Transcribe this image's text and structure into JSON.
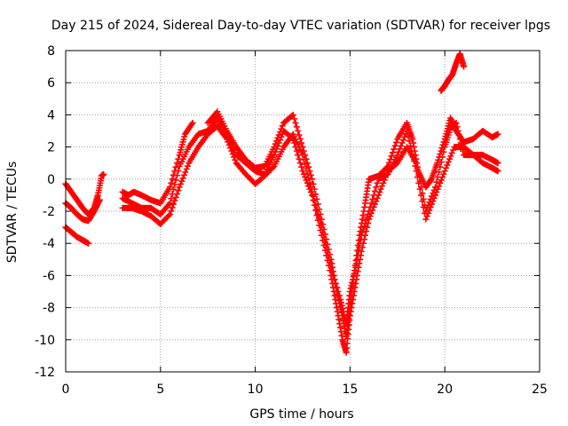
{
  "chart_data": {
    "type": "scatter",
    "title": "Day 215 of 2024, Sidereal Day-to-day VTEC variation (SDTVAR) for receiver lpgs",
    "xlabel": "GPS time / hours",
    "ylabel": "SDTVAR / TECUs",
    "xlim": [
      0,
      25
    ],
    "ylim": [
      -12,
      8
    ],
    "x_ticks": [
      0,
      5,
      10,
      15,
      20,
      25
    ],
    "y_ticks": [
      -12,
      -10,
      -8,
      -6,
      -4,
      -2,
      0,
      2,
      4,
      6,
      8
    ],
    "grid": true,
    "legend": "none",
    "marker": "+",
    "series": [
      {
        "name": "SDTVAR",
        "color": "#ff0000",
        "x": [
          0.0,
          0.3,
          0.6,
          0.9,
          1.2,
          1.5,
          1.7,
          1.9,
          2.0,
          3.0,
          3.3,
          3.6,
          4.0,
          4.5,
          5.0,
          5.5,
          6.0,
          6.3,
          6.7,
          7.5,
          8.0,
          8.5,
          9.0,
          9.5,
          10.0,
          10.5,
          11.0,
          11.5,
          12.0,
          12.5,
          13.0,
          13.5,
          14.0,
          14.3,
          14.6,
          14.8,
          15.0,
          15.2,
          15.5,
          15.8,
          16.0,
          16.5,
          17.0,
          17.5,
          18.0,
          18.3,
          18.6,
          19.0,
          19.3,
          19.6,
          20.0,
          20.3,
          20.6,
          21.0,
          21.5,
          22.0,
          22.5,
          22.8
        ],
        "y": [
          -0.3,
          -0.8,
          -1.3,
          -1.8,
          -2.2,
          -1.8,
          -1.0,
          0.2,
          0.3,
          -0.8,
          -1.0,
          -0.8,
          -1.0,
          -1.3,
          -1.5,
          -0.5,
          1.5,
          2.8,
          3.5,
          3.5,
          4.2,
          3.0,
          2.0,
          1.2,
          0.7,
          0.8,
          2.0,
          3.5,
          4.0,
          2.0,
          0.0,
          -2.5,
          -5.0,
          -7.0,
          -8.5,
          -9.8,
          -8.0,
          -6.0,
          -3.5,
          -1.5,
          0.0,
          0.2,
          0.8,
          2.5,
          3.5,
          2.5,
          0.5,
          -0.5,
          0.0,
          1.0,
          2.5,
          3.8,
          3.0,
          2.3,
          2.5,
          3.0,
          2.6,
          2.8
        ]
      },
      {
        "name": "SDTVAR",
        "color": "#ff0000",
        "x": [
          0.0,
          0.3,
          0.6,
          0.9,
          1.2,
          1.5,
          1.8,
          3.0,
          3.5,
          4.0,
          4.5,
          5.0,
          5.5,
          6.0,
          6.5,
          7.0,
          7.5,
          8.0,
          8.5,
          9.0,
          9.5,
          10.0,
          10.5,
          11.0,
          11.5,
          12.0,
          12.5,
          13.0,
          13.5,
          14.0,
          14.3,
          14.6,
          14.8,
          15.0,
          15.3,
          15.6,
          16.0,
          16.5,
          17.0,
          17.5,
          18.0,
          18.5,
          19.0,
          19.5,
          20.0,
          20.3,
          20.6,
          21.0,
          21.5,
          22.0,
          22.5,
          22.8
        ],
        "y": [
          -1.5,
          -1.8,
          -2.2,
          -2.5,
          -2.6,
          -2.0,
          -1.3,
          -1.2,
          -1.5,
          -1.8,
          -1.8,
          -2.2,
          -1.5,
          0.8,
          2.0,
          2.8,
          3.0,
          3.8,
          2.8,
          1.5,
          1.0,
          0.5,
          0.3,
          1.5,
          3.0,
          2.5,
          0.5,
          -1.0,
          -3.5,
          -6.0,
          -8.0,
          -10.0,
          -10.8,
          -8.5,
          -6.5,
          -4.5,
          -2.5,
          -1.0,
          0.5,
          1.0,
          2.0,
          1.0,
          -2.0,
          -0.5,
          2.0,
          3.2,
          3.5,
          1.5,
          1.5,
          1.5,
          1.2,
          1.0
        ]
      },
      {
        "name": "SDTVAR",
        "color": "#ff0000",
        "x": [
          0.0,
          0.3,
          0.6,
          0.9,
          1.2,
          3.0,
          3.5,
          4.0,
          4.5,
          5.0,
          5.5,
          6.0,
          6.5,
          7.0,
          7.5,
          8.0,
          8.5,
          9.0,
          9.5,
          10.0,
          10.5,
          11.0,
          11.5,
          12.0,
          12.5,
          13.0,
          13.5,
          14.0,
          14.5,
          14.8,
          15.0,
          15.3,
          15.6,
          16.0,
          16.5,
          17.0,
          17.5,
          18.0,
          18.5,
          19.0,
          19.5,
          20.0,
          20.5,
          21.0,
          21.5,
          22.0,
          22.5,
          22.8
        ],
        "y": [
          -3.0,
          -3.3,
          -3.6,
          -3.8,
          -4.0,
          -1.8,
          -1.8,
          -2.0,
          -2.3,
          -2.8,
          -2.2,
          -0.5,
          1.0,
          2.0,
          2.8,
          3.3,
          2.5,
          1.0,
          0.3,
          -0.3,
          0.2,
          0.8,
          2.0,
          2.8,
          1.5,
          -0.8,
          -3.0,
          -5.5,
          -7.5,
          -9.0,
          -7.0,
          -5.5,
          -3.5,
          -2.0,
          0.0,
          0.3,
          1.5,
          3.0,
          0.5,
          -2.5,
          -1.0,
          0.5,
          2.0,
          2.0,
          1.5,
          1.0,
          0.7,
          0.5
        ]
      },
      {
        "name": "SDTVAR",
        "color": "#ff0000",
        "x": [
          19.8,
          20.0,
          20.2,
          20.4,
          20.6,
          20.8,
          21.0
        ],
        "y": [
          5.5,
          5.8,
          6.2,
          6.5,
          7.2,
          7.8,
          7.0
        ]
      }
    ]
  }
}
